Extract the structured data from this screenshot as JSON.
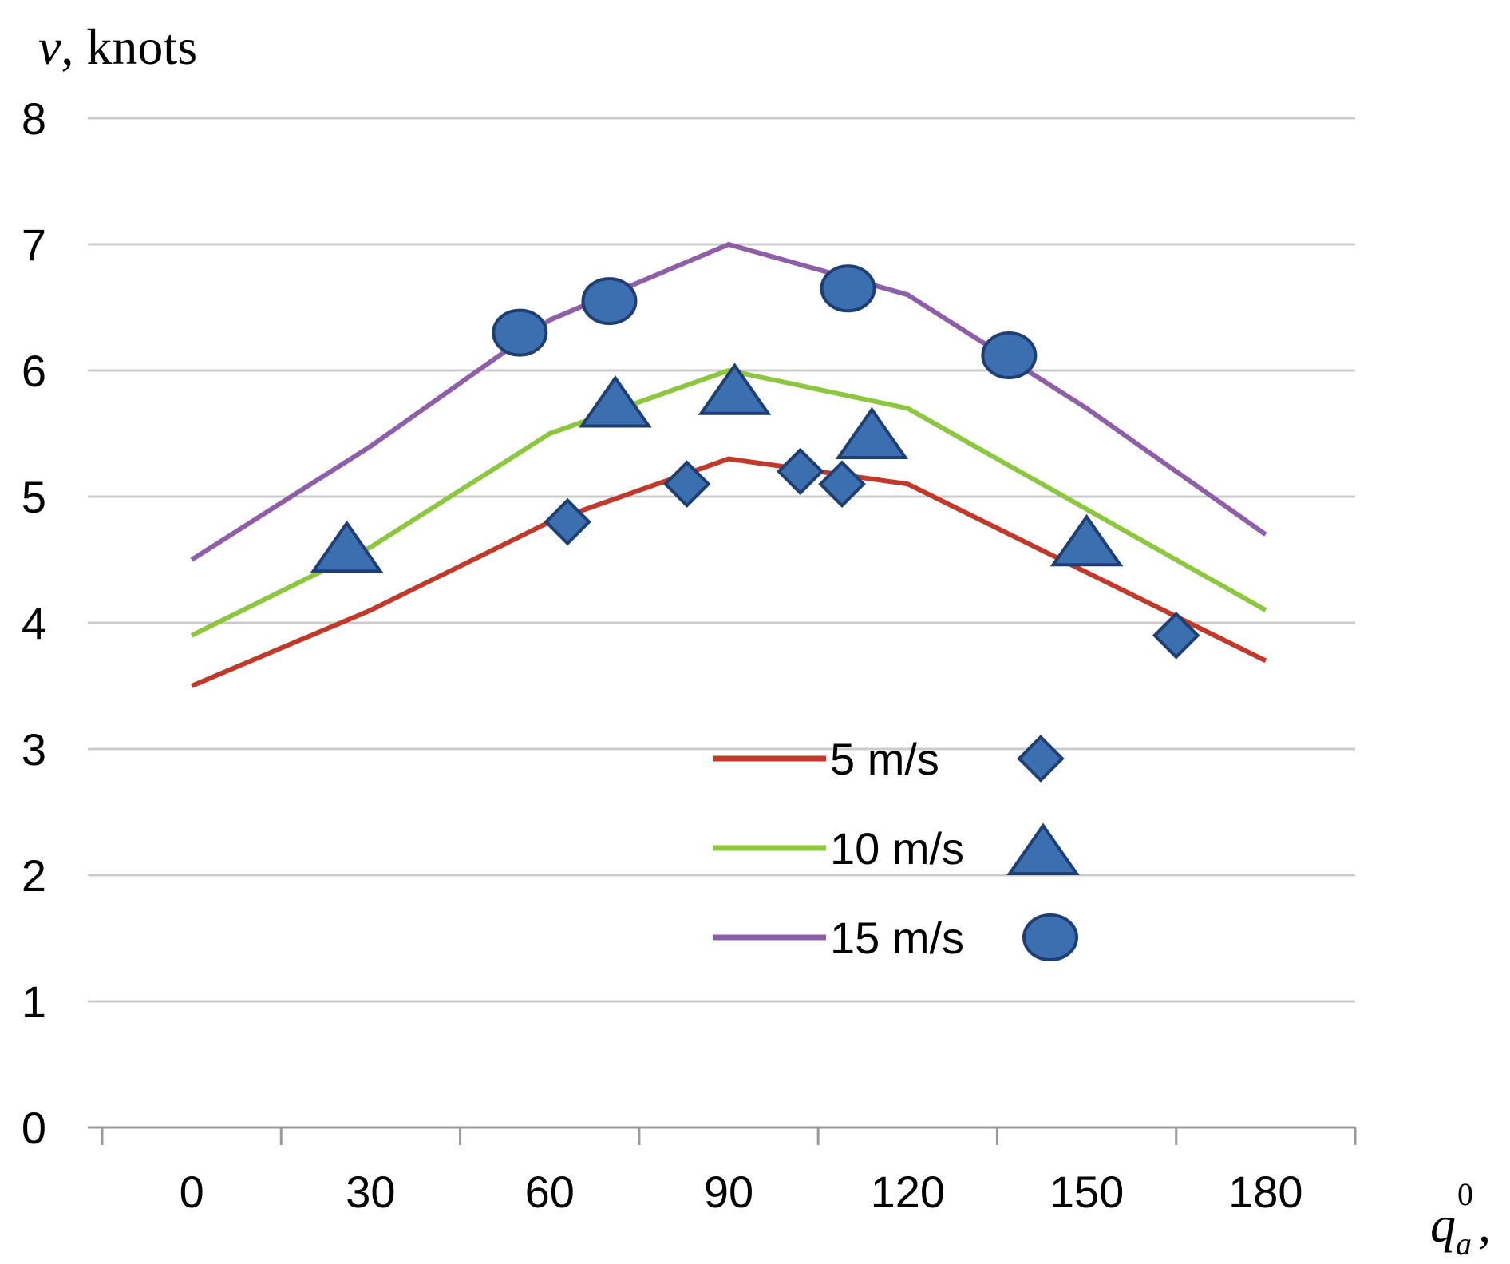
{
  "chart_data": {
    "type": "line",
    "ylabel": {
      "variable": "v",
      "unit": ", knots"
    },
    "xlabel": {
      "variable": "q",
      "subscript": "a",
      "superscript": "0",
      "suffix": ","
    },
    "ylim": [
      0,
      8
    ],
    "xlim": [
      -15,
      195
    ],
    "x_ticks": [
      0,
      30,
      60,
      90,
      120,
      150,
      180
    ],
    "y_ticks": [
      0,
      1,
      2,
      3,
      4,
      5,
      6,
      7,
      8
    ],
    "grid": true,
    "legend_position": "lower-center",
    "series": [
      {
        "name": "5 m/s",
        "line_color": "#c0392b",
        "marker": "diamond",
        "line": {
          "x": [
            0,
            30,
            60,
            90,
            120,
            150,
            180
          ],
          "y": [
            3.5,
            4.1,
            4.8,
            5.3,
            5.1,
            4.4,
            3.7
          ]
        },
        "points": {
          "x": [
            63,
            83,
            102,
            109,
            165
          ],
          "y": [
            4.8,
            5.1,
            5.2,
            5.1,
            3.9
          ]
        }
      },
      {
        "name": "10 m/s",
        "line_color": "#8dc63f",
        "marker": "triangle",
        "line": {
          "x": [
            0,
            30,
            60,
            90,
            120,
            150,
            180
          ],
          "y": [
            3.9,
            4.6,
            5.5,
            6.0,
            5.7,
            4.9,
            4.1
          ]
        },
        "points": {
          "x": [
            26,
            71,
            91,
            114,
            150
          ],
          "y": [
            4.6,
            5.75,
            5.85,
            5.5,
            4.65
          ]
        }
      },
      {
        "name": "15 m/s",
        "line_color": "#8e5ea8",
        "marker": "circle",
        "line": {
          "x": [
            0,
            30,
            60,
            90,
            120,
            150,
            180
          ],
          "y": [
            4.5,
            5.4,
            6.4,
            7.0,
            6.6,
            5.7,
            4.7
          ]
        },
        "points": {
          "x": [
            55,
            70,
            110,
            137
          ],
          "y": [
            6.3,
            6.55,
            6.65,
            6.12
          ]
        }
      }
    ]
  },
  "marker_fill": "#3b6fb0",
  "marker_stroke": "#1f3f73",
  "grid_color": "#cccccc",
  "axis_color": "#999999"
}
